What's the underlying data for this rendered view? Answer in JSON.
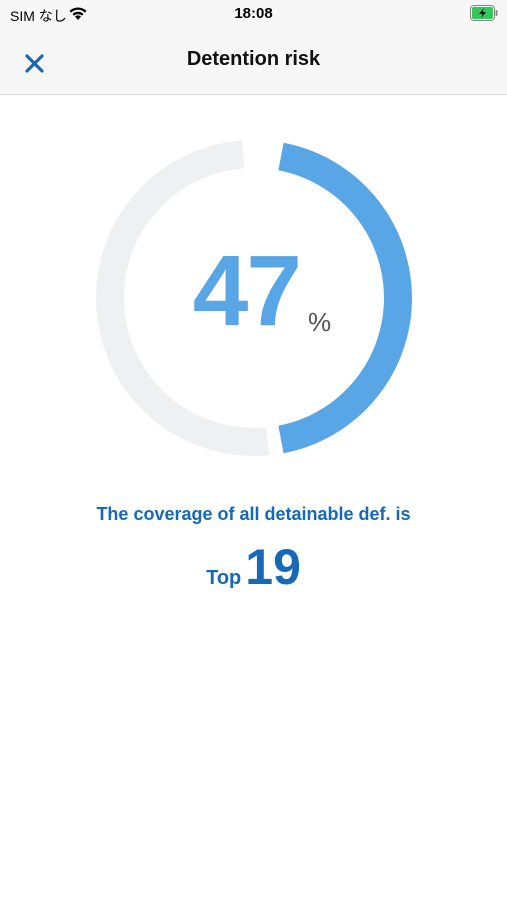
{
  "status_bar": {
    "carrier": "SIM なし",
    "time": "18:08",
    "wifi_icon": "wifi-icon",
    "battery_icon": "battery-charging-icon",
    "battery_color": "#34c759"
  },
  "nav": {
    "close_icon": "close-icon",
    "title": "Detention risk"
  },
  "gauge": {
    "value": "47",
    "unit": "%",
    "fill_fraction": 0.47,
    "fill_color": "#58a6e6",
    "track_color": "#eef0f2"
  },
  "coverage": {
    "text": "The coverage of all detainable def. is",
    "rank_prefix": "Top",
    "rank_value": "19",
    "text_color": "#1668b8"
  }
}
